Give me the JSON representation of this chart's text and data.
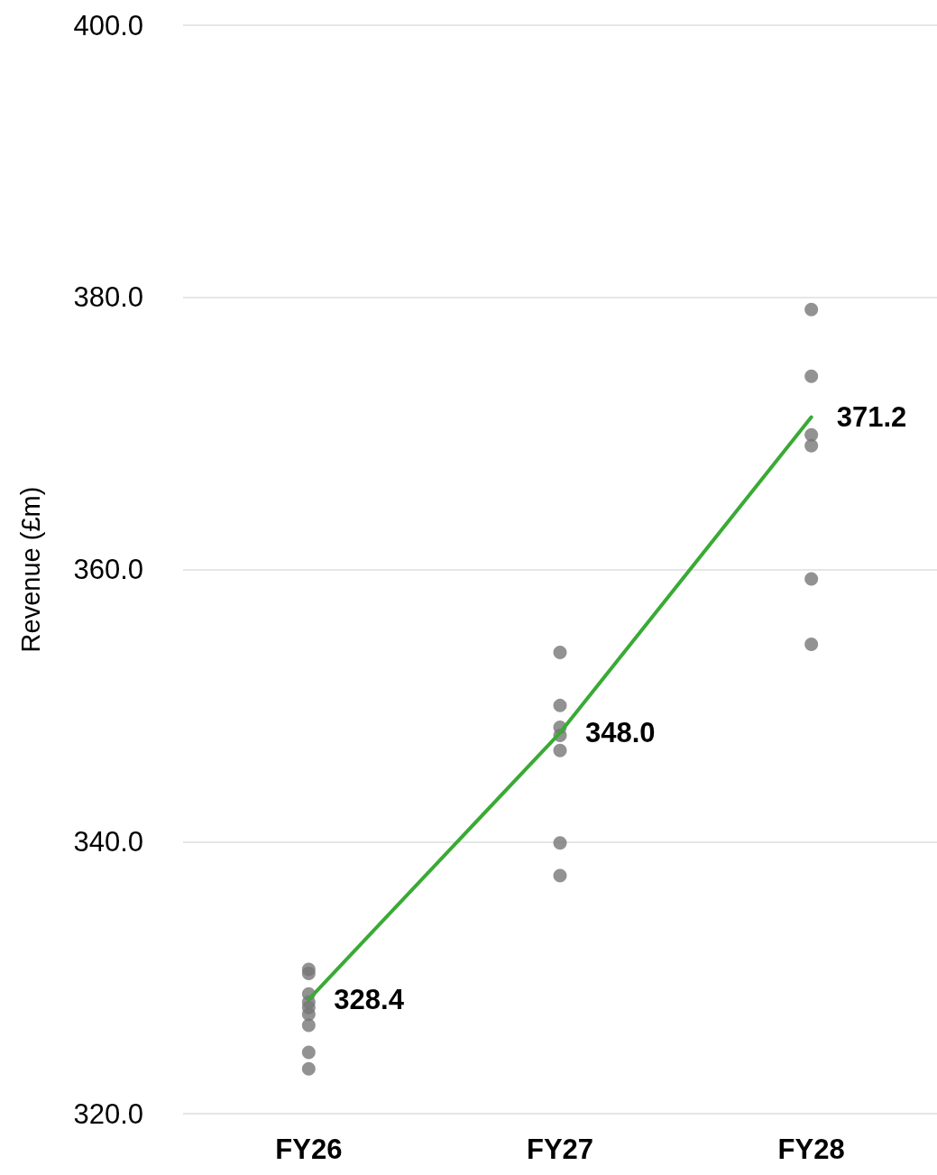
{
  "chart_data": {
    "type": "line",
    "ylabel": "Revenue (£m)",
    "categories": [
      "FY26",
      "FY27",
      "FY28"
    ],
    "series": [
      {
        "type": "scatter",
        "color": "#777777",
        "x": [
          "FY26",
          "FY26",
          "FY26",
          "FY26",
          "FY26",
          "FY26",
          "FY26",
          "FY26",
          "FY26",
          "FY27",
          "FY27",
          "FY27",
          "FY27",
          "FY27",
          "FY27",
          "FY27",
          "FY28",
          "FY28",
          "FY28",
          "FY28",
          "FY28",
          "FY28"
        ],
        "values": [
          330.6,
          330.3,
          328.8,
          328.2,
          327.8,
          327.3,
          326.5,
          324.5,
          323.3,
          353.9,
          350.0,
          348.4,
          347.8,
          346.7,
          339.9,
          337.5,
          379.1,
          374.2,
          369.9,
          369.1,
          359.3,
          354.5
        ]
      },
      {
        "color": "#3aaa35",
        "values": [
          328.4,
          348.0,
          371.2
        ],
        "value_labels": [
          "328.4",
          "348.0",
          "371.2"
        ]
      }
    ],
    "ylim": [
      320,
      400
    ],
    "yticks": [
      {
        "value": 320,
        "label": "320.0"
      },
      {
        "value": 340,
        "label": "340.0"
      },
      {
        "value": 360,
        "label": "360.0"
      },
      {
        "value": 380,
        "label": "380.0"
      },
      {
        "value": 400,
        "label": "400.0"
      }
    ],
    "grid": "y",
    "line_style": "solid"
  }
}
